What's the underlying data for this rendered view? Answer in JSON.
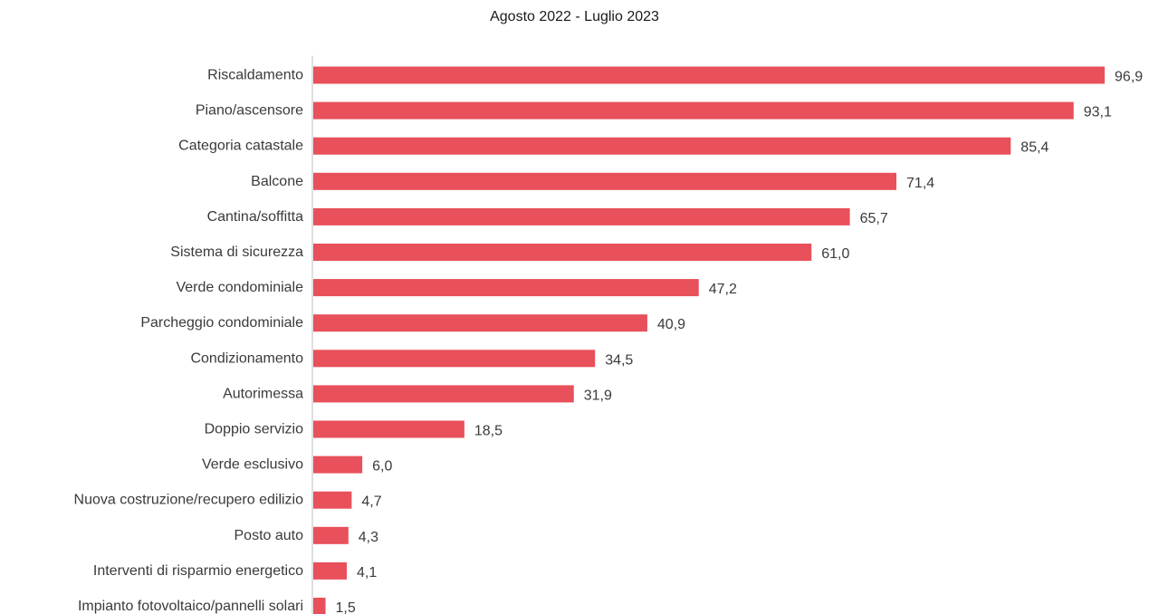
{
  "chart_data": {
    "type": "bar",
    "orientation": "horizontal",
    "title": "Agosto 2022 - Luglio 2023",
    "xlabel": "",
    "ylabel": "",
    "xlim": [
      0,
      100
    ],
    "grid": false,
    "legend": "none",
    "bar_color": "#E8505B",
    "axis_color": "#BFBFBF",
    "text_color": "#3a3a3a",
    "categories": [
      "Riscaldamento",
      "Piano/ascensore",
      "Categoria catastale",
      "Balcone",
      "Cantina/soffitta",
      "Sistema di sicurezza",
      "Verde condominiale",
      "Parcheggio condominiale",
      "Condizionamento",
      "Autorimessa",
      "Doppio servizio",
      "Verde esclusivo",
      "Nuova costruzione/recupero edilizio",
      "Posto auto",
      "Interventi di risparmio energetico",
      "Impianto fotovoltaico/pannelli solari"
    ],
    "values": [
      96.9,
      93.1,
      85.4,
      71.4,
      65.7,
      61.0,
      47.2,
      40.9,
      34.5,
      31.9,
      18.5,
      6.0,
      4.7,
      4.3,
      4.1,
      1.5
    ],
    "value_labels": [
      "96,9",
      "93,1",
      "85,4",
      "71,4",
      "65,7",
      "61,0",
      "47,2",
      "40,9",
      "34,5",
      "31,9",
      "18,5",
      "6,0",
      "4,7",
      "4,3",
      "4,1",
      "1,5"
    ]
  }
}
